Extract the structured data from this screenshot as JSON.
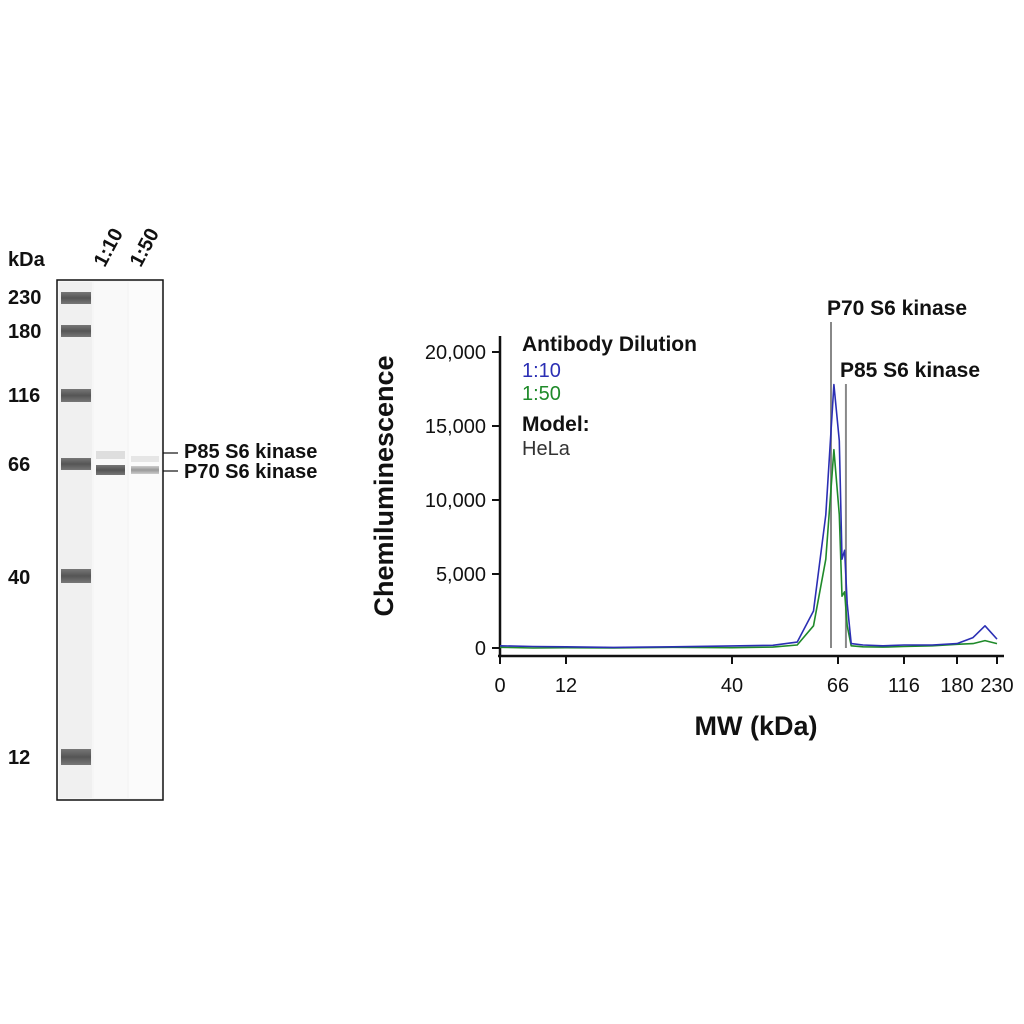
{
  "blot": {
    "kda_label": "kDa",
    "lanes": [
      "1:10",
      "1:50"
    ],
    "markers": [
      "230",
      "180",
      "116",
      "66",
      "40",
      "12"
    ],
    "band_labels": [
      "P85 S6 kinase",
      "P70 S6 kinase"
    ]
  },
  "chart_data": {
    "type": "line",
    "xlabel": "MW (kDa)",
    "ylabel": "Chemiluminescence",
    "x_ticks": [
      "0",
      "12",
      "40",
      "66",
      "116",
      "180",
      "230"
    ],
    "y_ticks": [
      "0",
      "5,000",
      "10,000",
      "15,000",
      "20,000"
    ],
    "ylim": [
      0,
      20000
    ],
    "legend": {
      "title": "Antibody Dilution",
      "entries": [
        "1:10",
        "1:50"
      ],
      "model_label": "Model:",
      "model_value": "HeLa"
    },
    "annotations": [
      "P70 S6 kinase",
      "P85 S6 kinase"
    ],
    "colors": {
      "series_1_10": "#2b2fb4",
      "series_1_50": "#1f8a2a",
      "marker_line": "#888888"
    },
    "series": [
      {
        "name": "1:10",
        "points": [
          [
            0,
            150
          ],
          [
            6,
            100
          ],
          [
            12,
            80
          ],
          [
            20,
            40
          ],
          [
            30,
            80
          ],
          [
            40,
            140
          ],
          [
            50,
            180
          ],
          [
            56,
            400
          ],
          [
            60,
            2500
          ],
          [
            63,
            9000
          ],
          [
            65,
            17800
          ],
          [
            67,
            14000
          ],
          [
            69,
            6000
          ],
          [
            71,
            6600
          ],
          [
            73,
            3000
          ],
          [
            76,
            300
          ],
          [
            85,
            200
          ],
          [
            100,
            150
          ],
          [
            116,
            200
          ],
          [
            150,
            200
          ],
          [
            180,
            300
          ],
          [
            200,
            700
          ],
          [
            215,
            1500
          ],
          [
            230,
            600
          ]
        ]
      },
      {
        "name": "1:50",
        "points": [
          [
            0,
            50
          ],
          [
            6,
            0
          ],
          [
            12,
            20
          ],
          [
            20,
            0
          ],
          [
            30,
            50
          ],
          [
            40,
            20
          ],
          [
            50,
            60
          ],
          [
            56,
            200
          ],
          [
            60,
            1500
          ],
          [
            63,
            6000
          ],
          [
            65,
            13400
          ],
          [
            67,
            9000
          ],
          [
            69,
            3500
          ],
          [
            71,
            3800
          ],
          [
            73,
            1500
          ],
          [
            76,
            150
          ],
          [
            85,
            80
          ],
          [
            100,
            60
          ],
          [
            116,
            100
          ],
          [
            150,
            150
          ],
          [
            180,
            250
          ],
          [
            200,
            300
          ],
          [
            215,
            500
          ],
          [
            230,
            300
          ]
        ]
      }
    ]
  }
}
